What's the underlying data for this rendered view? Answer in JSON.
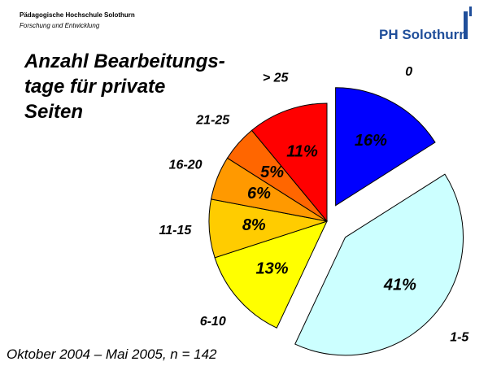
{
  "header": {
    "institution": "Pädagogische Hochschule Solothurn",
    "department": "Forschung und Entwicklung",
    "logo": "PH Solothurn"
  },
  "chart_data": {
    "type": "pie",
    "title": "Anzahl Bearbeitungs-\ntage für private\nSeiten",
    "categories": [
      "0",
      "1-5",
      "6-10",
      "11-15",
      "16-20",
      "21-25",
      "> 25"
    ],
    "values": [
      16,
      41,
      13,
      8,
      6,
      5,
      11
    ],
    "value_labels": [
      "16%",
      "41%",
      "13%",
      "8%",
      "6%",
      "5%",
      "11%"
    ],
    "colors": [
      "#0000ff",
      "#ccffff",
      "#ffff00",
      "#ffcc00",
      "#ff9900",
      "#ff6600",
      "#ff0000"
    ]
  },
  "footnote": "Oktober 2004 – Mai 2005, n = 142"
}
